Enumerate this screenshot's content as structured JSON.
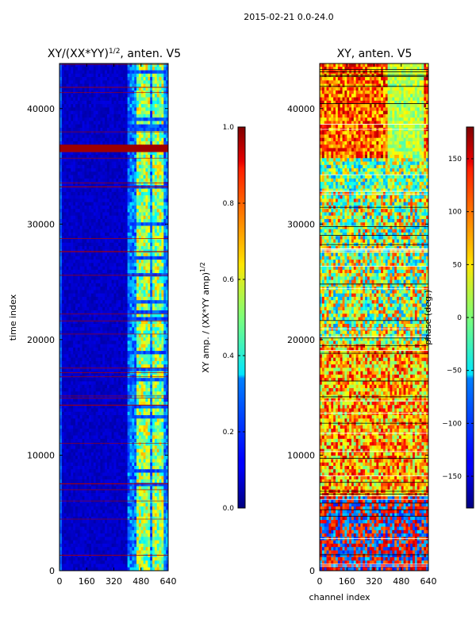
{
  "suptitle": "2015-02-21 0.0-24.0",
  "chart_data": [
    {
      "type": "heatmap",
      "title_main": "XY/(XX*YY)",
      "title_sup": "1/2",
      "title_rest": ", anten. V5",
      "xlabel": "",
      "ylabel": "time index",
      "xlim": [
        0,
        640
      ],
      "ylim": [
        0,
        43900
      ],
      "xticks": [
        "0",
        "160",
        "320",
        "480",
        "640"
      ],
      "xtick_values": [
        0,
        160,
        320,
        480,
        640
      ],
      "yticks": [
        "0",
        "10000",
        "20000",
        "30000",
        "40000"
      ],
      "ytick_values": [
        0,
        10000,
        20000,
        30000,
        40000
      ],
      "colormap": "jet",
      "colorbar": {
        "label_main": "XY amp. / (XX*YY amp)",
        "label_sup": "1/2",
        "range": [
          0.0,
          1.0
        ],
        "ticks": [
          "0.0",
          "0.2",
          "0.4",
          "0.6",
          "0.8",
          "1.0"
        ],
        "tick_values": [
          0.0,
          0.2,
          0.4,
          0.6,
          0.8,
          1.0
        ]
      },
      "bright_channel_band": [
        405,
        640
      ],
      "saturated_time_band": [
        36300,
        37000
      ]
    },
    {
      "type": "heatmap",
      "title_main": "XY, anten. V5",
      "xlabel": "channel index",
      "ylabel": "",
      "xlim": [
        0,
        640
      ],
      "ylim": [
        0,
        43900
      ],
      "xticks": [
        "0",
        "160",
        "320",
        "480",
        "640"
      ],
      "xtick_values": [
        0,
        160,
        320,
        480,
        640
      ],
      "yticks": [
        "0",
        "10000",
        "20000",
        "30000",
        "40000"
      ],
      "ytick_values": [
        0,
        10000,
        20000,
        30000,
        40000
      ],
      "colormap": "jet",
      "colorbar": {
        "label_main": "phase (deg.)",
        "range": [
          -180,
          180
        ],
        "ticks": [
          "−150",
          "−100",
          "−50",
          "0",
          "50",
          "100",
          "150"
        ],
        "tick_values": [
          -150,
          -100,
          -50,
          0,
          50,
          100,
          150
        ]
      }
    }
  ]
}
